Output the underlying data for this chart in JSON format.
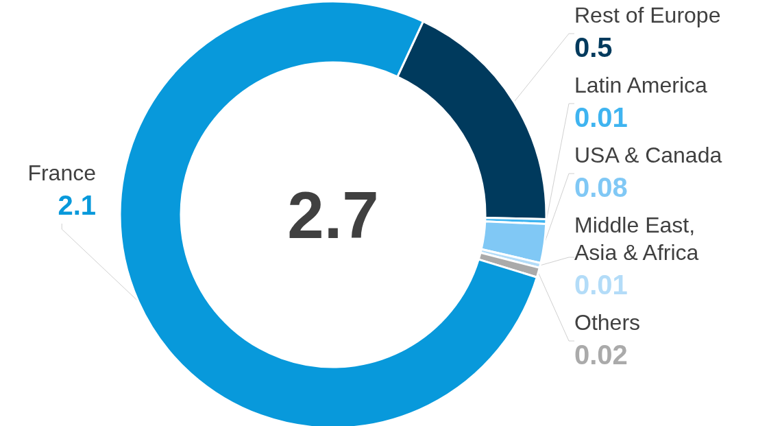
{
  "chart_data": {
    "type": "donut",
    "categories": [
      "Rest of Europe",
      "Latin America",
      "USA & Canada",
      "Middle East, Asia & Africa",
      "Others",
      "France"
    ],
    "values": [
      0.5,
      0.01,
      0.08,
      0.01,
      0.02,
      2.1
    ],
    "colors": [
      "#003a5d",
      "#3fb4f0",
      "#80c8f5",
      "#b3dcf8",
      "#aaaaaa",
      "#0899db"
    ],
    "data_labels": true,
    "annotations": [
      "2.7"
    ],
    "legend": false
  }
}
